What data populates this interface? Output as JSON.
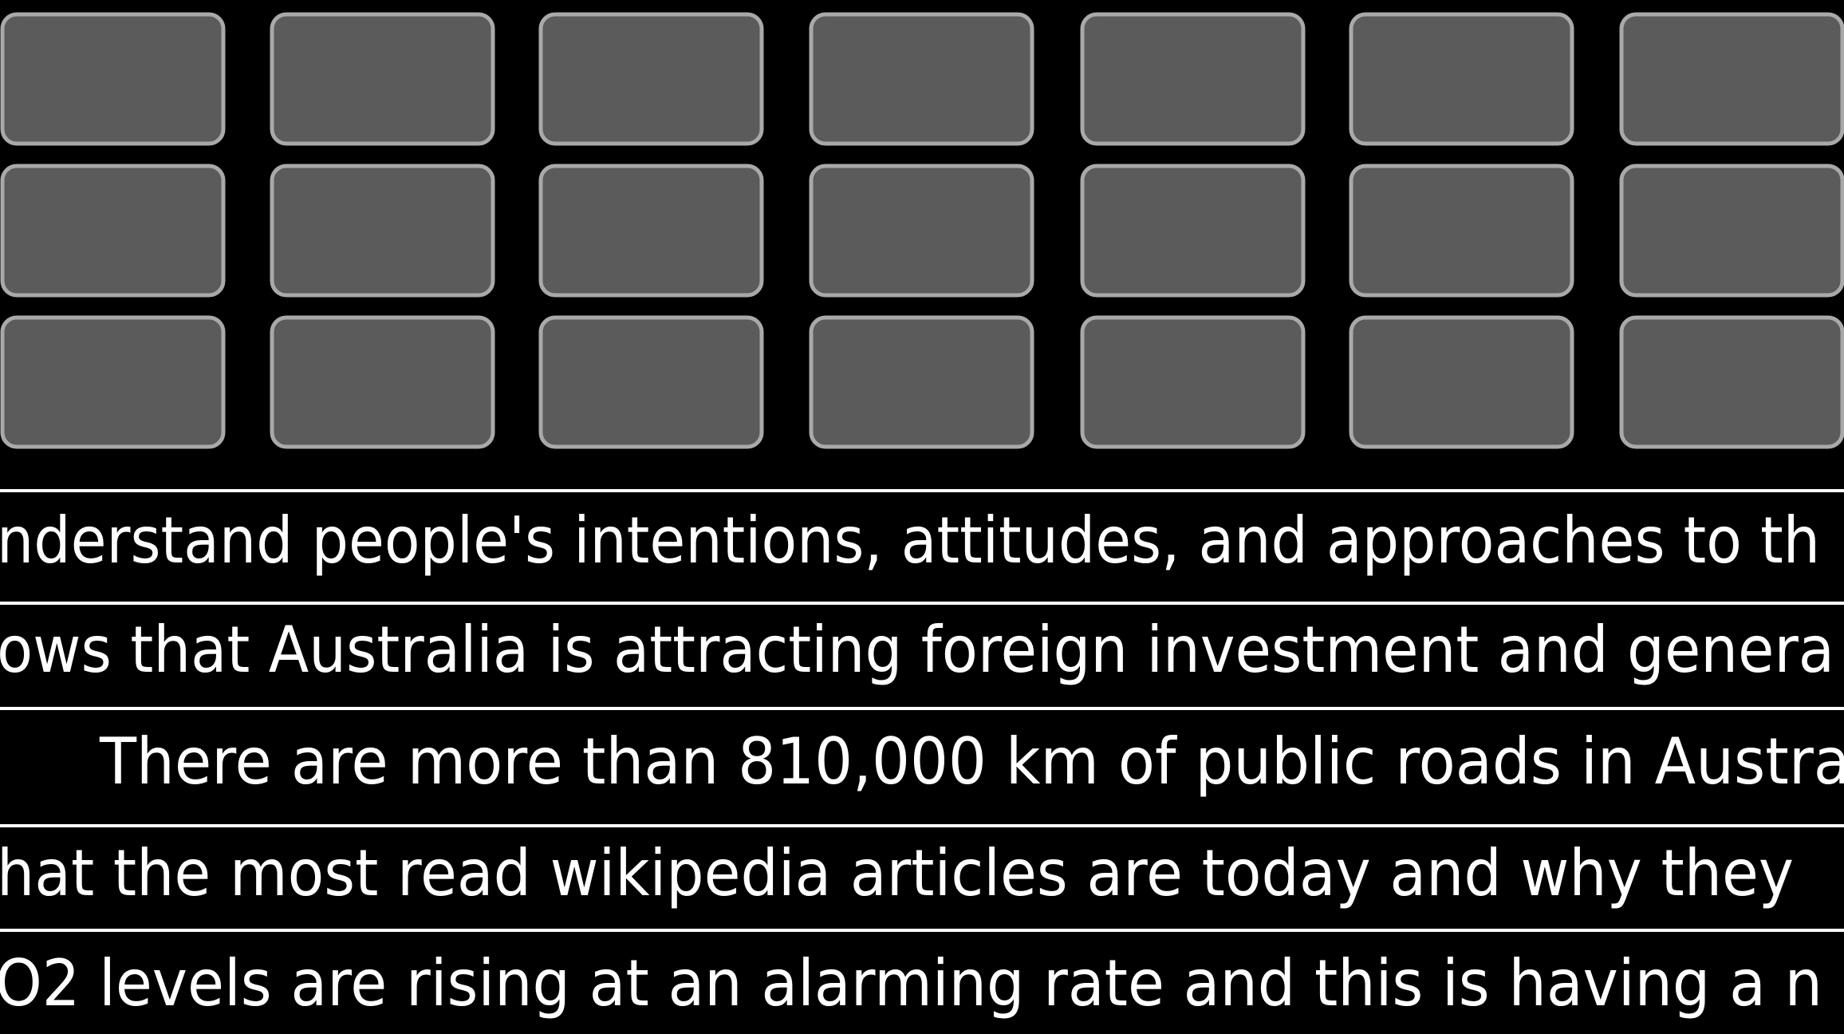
{
  "lines": [
    "nderstand people's intentions, attitudes, and approaches to th",
    "ows that Australia is attracting foreign investment and genera",
    "There are more than 810,000 km of public roads in Austra",
    "hat the most read wikipedia articles are today and why they",
    "O2 levels are rising at an alarming rate and this is having a n"
  ]
}
